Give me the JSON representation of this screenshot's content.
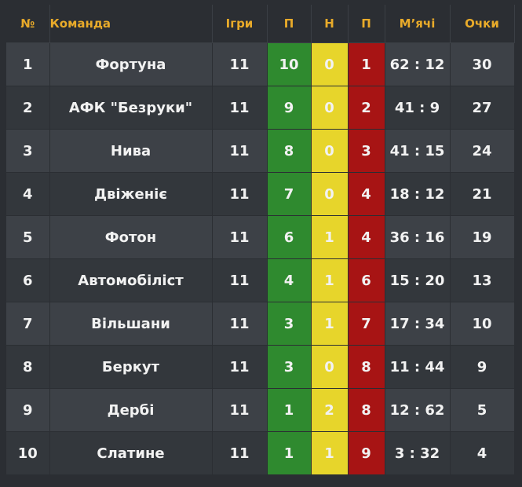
{
  "header": {
    "rank": "№",
    "team": "Команда",
    "games": "Ігри",
    "wins": "П",
    "draws": "Н",
    "losses": "П",
    "balls": "М’ячі",
    "points": "Очки"
  },
  "colors": {
    "header_text": "#e9ab2a",
    "wins": "#2f8a2f",
    "draws": "#e7d52b",
    "losses": "#a71414",
    "row_odd": "#3d4147",
    "row_even": "#33373c"
  },
  "rows": [
    {
      "rank": "1",
      "team": "Фортуна",
      "games": "11",
      "wins": "10",
      "draws": "0",
      "losses": "1",
      "balls": "62 : 12",
      "points": "30"
    },
    {
      "rank": "2",
      "team": "АФК \"Безруки\"",
      "games": "11",
      "wins": "9",
      "draws": "0",
      "losses": "2",
      "balls": "41 : 9",
      "points": "27"
    },
    {
      "rank": "3",
      "team": "Нива",
      "games": "11",
      "wins": "8",
      "draws": "0",
      "losses": "3",
      "balls": "41 : 15",
      "points": "24"
    },
    {
      "rank": "4",
      "team": "Двіженіє",
      "games": "11",
      "wins": "7",
      "draws": "0",
      "losses": "4",
      "balls": "18 : 12",
      "points": "21"
    },
    {
      "rank": "5",
      "team": "Фотон",
      "games": "11",
      "wins": "6",
      "draws": "1",
      "losses": "4",
      "balls": "36 : 16",
      "points": "19"
    },
    {
      "rank": "6",
      "team": "Автомобіліст",
      "games": "11",
      "wins": "4",
      "draws": "1",
      "losses": "6",
      "balls": "15 : 20",
      "points": "13"
    },
    {
      "rank": "7",
      "team": "Вільшани",
      "games": "11",
      "wins": "3",
      "draws": "1",
      "losses": "7",
      "balls": "17 : 34",
      "points": "10"
    },
    {
      "rank": "8",
      "team": "Беркут",
      "games": "11",
      "wins": "3",
      "draws": "0",
      "losses": "8",
      "balls": "11 : 44",
      "points": "9"
    },
    {
      "rank": "9",
      "team": "Дербі",
      "games": "11",
      "wins": "1",
      "draws": "2",
      "losses": "8",
      "balls": "12 : 62",
      "points": "5"
    },
    {
      "rank": "10",
      "team": "Слатине",
      "games": "11",
      "wins": "1",
      "draws": "1",
      "losses": "9",
      "balls": "3 : 32",
      "points": "4"
    }
  ]
}
